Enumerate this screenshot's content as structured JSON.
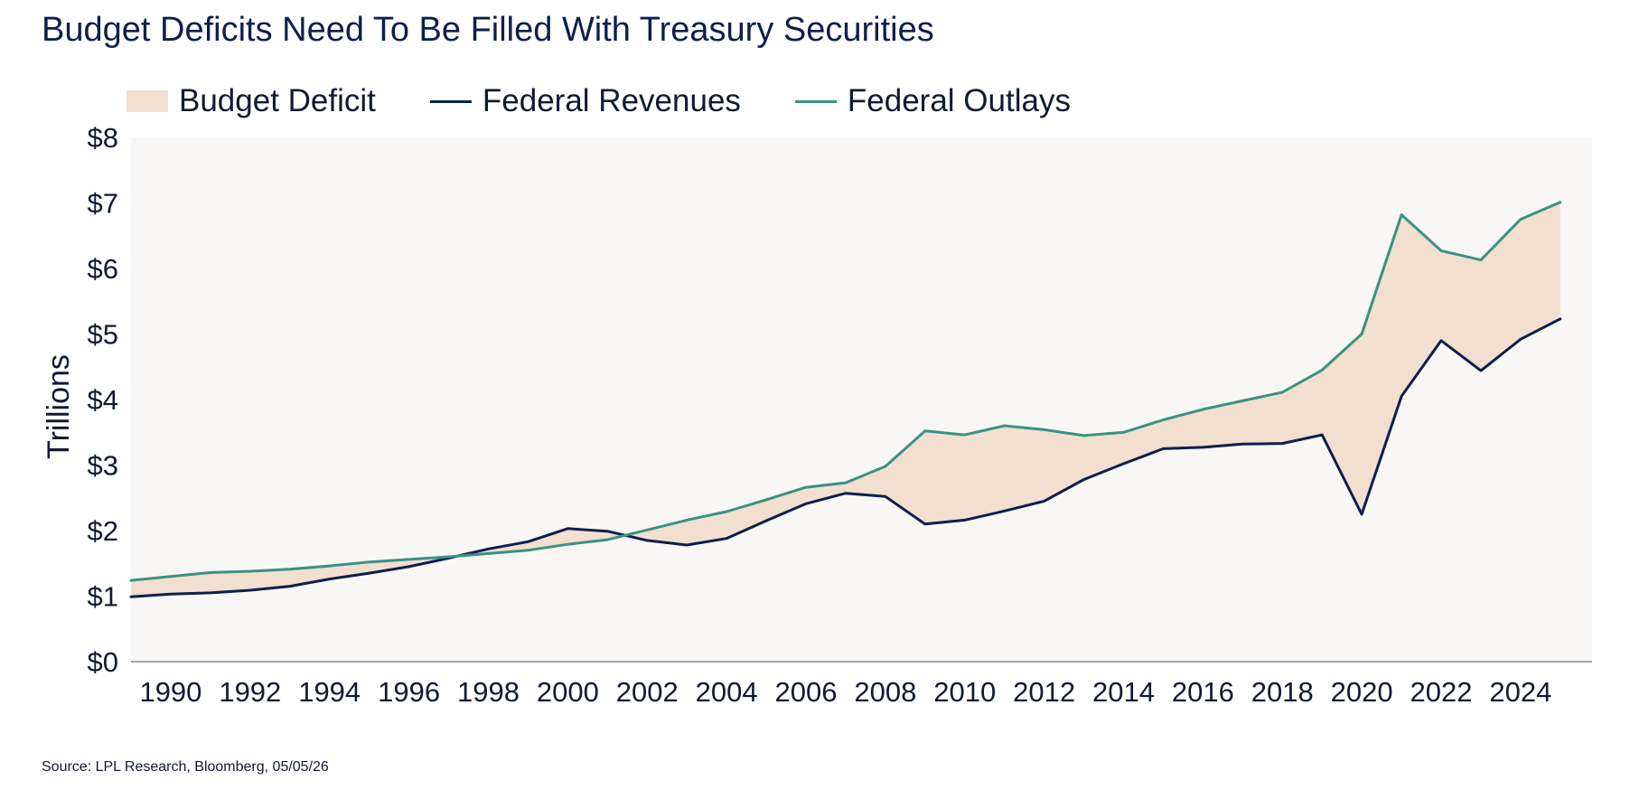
{
  "chart_data": {
    "type": "line",
    "title": "Budget Deficits Need To Be Filled With Treasury Securities",
    "ylabel": "Trillions",
    "xlabel": "",
    "ylim": [
      0,
      8
    ],
    "y_ticks": [
      "$0",
      "$1",
      "$2",
      "$3",
      "$4",
      "$5",
      "$6",
      "$7",
      "$8"
    ],
    "x_ticks": [
      "1990",
      "1992",
      "1994",
      "1996",
      "1998",
      "2000",
      "2002",
      "2004",
      "2006",
      "2008",
      "2010",
      "2012",
      "2014",
      "2016",
      "2018",
      "2020",
      "2022",
      "2024"
    ],
    "x": [
      1989,
      1990,
      1991,
      1992,
      1993,
      1994,
      1995,
      1996,
      1997,
      1998,
      1999,
      2000,
      2001,
      2002,
      2003,
      2004,
      2005,
      2006,
      2007,
      2008,
      2009,
      2010,
      2011,
      2012,
      2013,
      2014,
      2015,
      2016,
      2017,
      2018,
      2019,
      2020,
      2021,
      2022,
      2023,
      2024,
      2025
    ],
    "series": [
      {
        "name": "Federal Revenues",
        "color": "#0d1f4d",
        "values": [
          0.99,
          1.03,
          1.05,
          1.09,
          1.15,
          1.26,
          1.35,
          1.45,
          1.58,
          1.72,
          1.83,
          2.03,
          1.99,
          1.85,
          1.78,
          1.88,
          2.15,
          2.41,
          2.57,
          2.52,
          2.1,
          2.16,
          2.3,
          2.45,
          2.78,
          3.02,
          3.25,
          3.27,
          3.32,
          3.33,
          3.46,
          2.25,
          4.05,
          4.9,
          4.44,
          4.92,
          5.23
        ]
      },
      {
        "name": "Federal Outlays",
        "color": "#3a9282",
        "values": [
          1.24,
          1.3,
          1.36,
          1.38,
          1.41,
          1.46,
          1.52,
          1.56,
          1.6,
          1.65,
          1.7,
          1.79,
          1.86,
          2.01,
          2.16,
          2.29,
          2.47,
          2.66,
          2.73,
          2.98,
          3.52,
          3.46,
          3.6,
          3.54,
          3.45,
          3.5,
          3.69,
          3.85,
          3.98,
          4.11,
          4.45,
          5.0,
          6.82,
          6.27,
          6.13,
          6.75,
          7.01
        ]
      }
    ],
    "area": {
      "name": "Budget Deficit",
      "color": "#f2dfd0",
      "between": [
        "Federal Revenues",
        "Federal Outlays"
      ]
    },
    "plot_background": "#f9f7f5",
    "legend_placement": "top-left",
    "grid": false
  },
  "source": "Source: LPL Research, Bloomberg, 05/05/26"
}
